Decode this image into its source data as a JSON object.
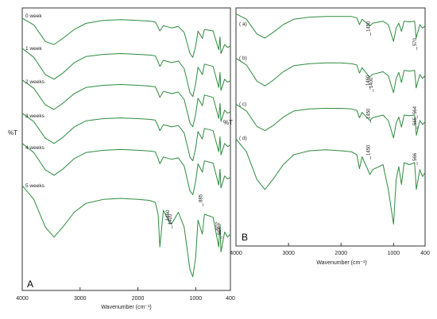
{
  "chart_data": [
    {
      "panel_label": "A",
      "type": "line",
      "ylabel": "%T",
      "xlabel": "Wavenumber (cm⁻¹)",
      "xlim": [
        4000,
        400
      ],
      "xticks": [
        4000,
        3000,
        2000,
        1000,
        400
      ],
      "xtick_labels": [
        "4000",
        "3000",
        "2000",
        "1000",
        "400"
      ],
      "series": [
        {
          "name": "0 week",
          "x": [
            4000,
            3800,
            3600,
            3450,
            3300,
            3100,
            2900,
            2600,
            2300,
            2000,
            1800,
            1700,
            1650,
            1620,
            1560,
            1460,
            1420,
            1300,
            1200,
            1100,
            1050,
            1000,
            960,
            885,
            850,
            700,
            602,
            580,
            564,
            500,
            450,
            400
          ],
          "y": [
            97,
            88,
            66,
            62,
            70,
            82,
            90,
            94,
            95,
            94,
            93,
            92,
            85,
            80,
            87,
            85,
            84,
            86,
            78,
            50,
            45,
            60,
            80,
            70,
            82,
            80,
            55,
            72,
            50,
            62,
            58,
            60
          ]
        },
        {
          "name": "1 week",
          "x": [
            4000,
            3800,
            3600,
            3450,
            3300,
            3100,
            2900,
            2600,
            2300,
            2000,
            1800,
            1700,
            1650,
            1620,
            1560,
            1460,
            1420,
            1300,
            1200,
            1100,
            1050,
            1000,
            960,
            885,
            850,
            700,
            602,
            580,
            564,
            500,
            450,
            400
          ],
          "y": [
            97,
            85,
            62,
            56,
            64,
            78,
            86,
            89,
            90,
            89,
            88,
            87,
            79,
            73,
            81,
            79,
            78,
            80,
            70,
            38,
            33,
            50,
            72,
            62,
            76,
            73,
            45,
            65,
            41,
            56,
            52,
            54
          ]
        },
        {
          "name": "2 weeks",
          "x": [
            4000,
            3800,
            3600,
            3450,
            3300,
            3100,
            2900,
            2600,
            2300,
            2000,
            1800,
            1700,
            1650,
            1620,
            1560,
            1460,
            1420,
            1300,
            1200,
            1100,
            1050,
            1000,
            960,
            885,
            850,
            700,
            602,
            580,
            564,
            500,
            450,
            400
          ],
          "y": [
            97,
            86,
            64,
            58,
            66,
            79,
            87,
            90,
            91,
            90,
            89,
            88,
            80,
            74,
            82,
            80,
            79,
            81,
            71,
            40,
            35,
            52,
            73,
            63,
            77,
            74,
            46,
            66,
            42,
            57,
            53,
            55
          ]
        },
        {
          "name": "3 weeks",
          "x": [
            4000,
            3800,
            3600,
            3450,
            3300,
            3100,
            2900,
            2600,
            2300,
            2000,
            1800,
            1700,
            1650,
            1620,
            1560,
            1460,
            1420,
            1300,
            1200,
            1100,
            1050,
            1000,
            960,
            885,
            850,
            700,
            602,
            580,
            564,
            500,
            450,
            400
          ],
          "y": [
            97,
            86,
            64,
            57,
            65,
            79,
            87,
            90,
            91,
            90,
            89,
            88,
            80,
            74,
            82,
            80,
            79,
            81,
            71,
            39,
            34,
            51,
            73,
            63,
            77,
            74,
            46,
            66,
            42,
            57,
            53,
            55
          ]
        },
        {
          "name": "4 weeks",
          "x": [
            4000,
            3800,
            3600,
            3450,
            3300,
            3100,
            2900,
            2600,
            2300,
            2000,
            1800,
            1700,
            1650,
            1620,
            1560,
            1460,
            1420,
            1300,
            1200,
            1100,
            1050,
            1000,
            960,
            885,
            850,
            700,
            602,
            580,
            564,
            500,
            450,
            400
          ],
          "y": [
            97,
            85,
            62,
            55,
            63,
            77,
            85,
            88,
            89,
            88,
            87,
            86,
            77,
            70,
            79,
            77,
            76,
            78,
            67,
            34,
            29,
            47,
            70,
            59,
            74,
            71,
            42,
            63,
            38,
            54,
            50,
            52
          ]
        },
        {
          "name": "5 weeks",
          "x": [
            4000,
            3800,
            3600,
            3450,
            3300,
            3100,
            2900,
            2600,
            2300,
            2000,
            1800,
            1700,
            1650,
            1620,
            1560,
            1460,
            1420,
            1300,
            1200,
            1100,
            1050,
            1000,
            960,
            885,
            850,
            700,
            602,
            580,
            564,
            500,
            450,
            400
          ],
          "y": [
            97,
            83,
            55,
            45,
            55,
            70,
            79,
            83,
            84,
            83,
            82,
            80,
            68,
            35,
            72,
            60,
            58,
            70,
            55,
            12,
            5,
            25,
            62,
            48,
            68,
            65,
            35,
            58,
            30,
            50,
            45,
            48
          ]
        }
      ],
      "annotations": [
        "1460",
        "1420",
        "885",
        "602",
        "564"
      ]
    },
    {
      "panel_label": "B",
      "type": "line",
      "ylabel": "%T",
      "xlabel": "Wavenumber (cm⁻¹)",
      "xlim": [
        4000,
        400
      ],
      "xticks": [
        4000,
        3000,
        2000,
        1000,
        400
      ],
      "xtick_labels": [
        "4000",
        "3000",
        "2000",
        "1000",
        "400"
      ],
      "series": [
        {
          "name": "( a)",
          "x": [
            4000,
            3800,
            3600,
            3450,
            3300,
            3100,
            2900,
            2600,
            2300,
            2000,
            1800,
            1700,
            1650,
            1600,
            1450,
            1400,
            1200,
            1100,
            1000,
            950,
            900,
            850,
            800,
            700,
            600,
            570,
            500,
            450,
            400
          ],
          "y": [
            96,
            88,
            66,
            60,
            68,
            80,
            88,
            91,
            92,
            92,
            92,
            90,
            80,
            88,
            78,
            82,
            85,
            80,
            55,
            75,
            82,
            70,
            85,
            84,
            85,
            60,
            80,
            75,
            78
          ]
        },
        {
          "name": "( b)",
          "x": [
            4000,
            3800,
            3600,
            3450,
            3300,
            3100,
            2900,
            2600,
            2300,
            2000,
            1800,
            1700,
            1650,
            1600,
            1460,
            1400,
            1200,
            1100,
            1000,
            950,
            900,
            850,
            800,
            700,
            600,
            570,
            500,
            450,
            400
          ],
          "y": [
            96,
            86,
            62,
            55,
            63,
            76,
            85,
            88,
            89,
            89,
            88,
            86,
            74,
            82,
            68,
            72,
            76,
            70,
            45,
            66,
            75,
            60,
            78,
            77,
            78,
            52,
            72,
            66,
            70
          ]
        },
        {
          "name": "( c)",
          "x": [
            4000,
            3800,
            3600,
            3450,
            3300,
            3100,
            2900,
            2600,
            2300,
            2000,
            1800,
            1700,
            1650,
            1600,
            1450,
            1400,
            1200,
            1100,
            1000,
            950,
            900,
            850,
            800,
            700,
            600,
            565,
            500,
            450,
            400
          ],
          "y": [
            96,
            86,
            63,
            57,
            64,
            77,
            86,
            89,
            90,
            90,
            89,
            87,
            76,
            84,
            72,
            76,
            80,
            72,
            46,
            68,
            77,
            62,
            80,
            79,
            80,
            50,
            72,
            66,
            70
          ]
        },
        {
          "name": "( d)",
          "x": [
            4000,
            3800,
            3600,
            3450,
            3300,
            3100,
            2900,
            2600,
            2300,
            2000,
            1800,
            1700,
            1650,
            1600,
            1450,
            1400,
            1200,
            1100,
            1000,
            950,
            900,
            850,
            800,
            700,
            600,
            566,
            500,
            450,
            400
          ],
          "y": [
            96,
            83,
            55,
            45,
            55,
            70,
            80,
            84,
            85,
            84,
            83,
            80,
            66,
            78,
            60,
            65,
            70,
            45,
            10,
            55,
            68,
            50,
            72,
            70,
            72,
            45,
            65,
            58,
            62
          ]
        }
      ],
      "annotations": [
        "1450",
        "570",
        "1460",
        "1400",
        "1450",
        "565",
        "564",
        "1450",
        "566"
      ]
    }
  ]
}
